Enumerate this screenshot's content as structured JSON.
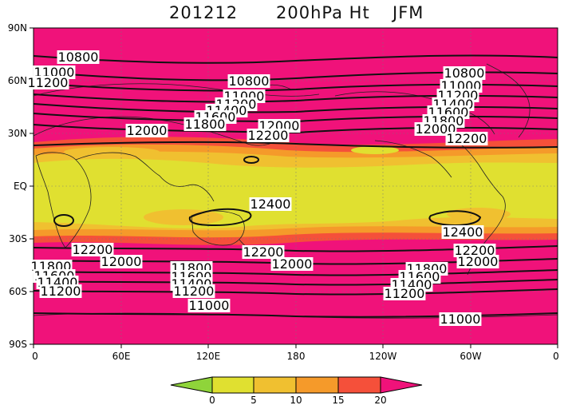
{
  "title": {
    "date": "201212",
    "level": "200hPa Ht",
    "season": "JFM"
  },
  "map": {
    "lat_labels": [
      "90N",
      "60N",
      "30N",
      "EQ",
      "30S",
      "60S",
      "90S"
    ],
    "lon_labels": [
      "0",
      "60E",
      "120E",
      "180",
      "120W",
      "60W",
      "0"
    ]
  },
  "colorbar": {
    "ticks": [
      "0",
      "5",
      "10",
      "15",
      "20"
    ],
    "colors": [
      "#8fd43a",
      "#e0e030",
      "#f0c030",
      "#f59a2a",
      "#f5503a",
      "#f0127a"
    ]
  },
  "contour_labels": [
    "10800",
    "11000",
    "11200",
    "10800",
    "11000",
    "11200",
    "11400",
    "11600",
    "11800",
    "12000",
    "12000",
    "12200",
    "10800",
    "11000",
    "11200",
    "11400",
    "11600",
    "11800",
    "12000",
    "12200",
    "12400",
    "12400",
    "12200",
    "12000",
    "12200",
    "12000",
    "11800",
    "11600",
    "11400",
    "11200",
    "11800",
    "11600",
    "11400",
    "11200",
    "11000",
    "12200",
    "12000",
    "11800",
    "11600",
    "11400",
    "11200",
    "11000"
  ]
}
